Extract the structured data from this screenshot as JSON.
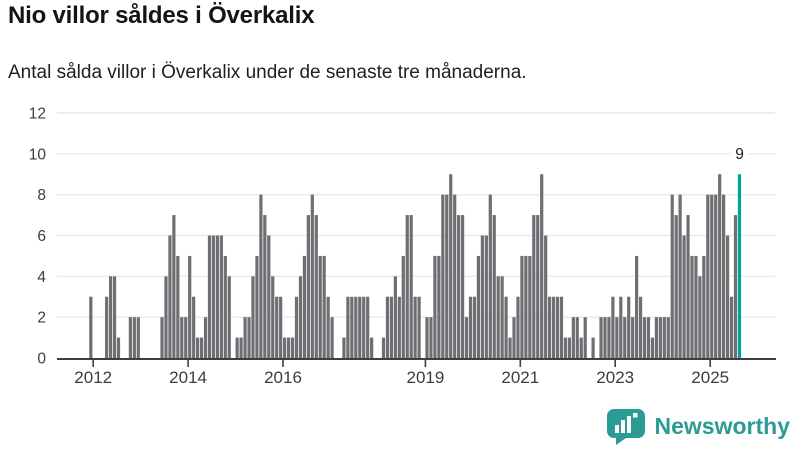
{
  "header": {
    "title": "Nio villor såldes i Överkalix",
    "subtitle": "Antal sålda villor i Överkalix under de senaste tre månaderna."
  },
  "chart_data": {
    "type": "bar",
    "title": "Nio villor såldes i Överkalix",
    "subtitle": "Antal sålda villor i Överkalix under de senaste tre månaderna.",
    "description": "Monthly bars (rolling 3-month count of sold houses), from mid-2011 to 2025. Last bar highlighted.",
    "ylim": [
      0,
      12
    ],
    "yticks": [
      0,
      2,
      4,
      6,
      8,
      10,
      12
    ],
    "grid": true,
    "legend": false,
    "x_axis": {
      "tick_years": [
        "2012",
        "2014",
        "2016",
        "2019",
        "2021",
        "2023",
        "2025"
      ],
      "tick_month_indices": [
        7,
        31,
        55,
        91,
        115,
        139,
        163
      ]
    },
    "values": [
      0,
      0,
      0,
      0,
      0,
      0,
      3,
      0,
      0,
      0,
      3,
      4,
      4,
      1,
      0,
      0,
      2,
      2,
      2,
      0,
      0,
      0,
      0,
      0,
      2,
      4,
      6,
      7,
      5,
      2,
      2,
      5,
      3,
      1,
      1,
      2,
      6,
      6,
      6,
      6,
      5,
      4,
      0,
      1,
      1,
      2,
      2,
      4,
      5,
      8,
      7,
      6,
      4,
      3,
      3,
      1,
      1,
      1,
      3,
      4,
      5,
      7,
      8,
      7,
      5,
      5,
      3,
      2,
      0,
      0,
      1,
      3,
      3,
      3,
      3,
      3,
      3,
      1,
      0,
      0,
      1,
      3,
      3,
      4,
      3,
      5,
      7,
      7,
      3,
      3,
      0,
      2,
      2,
      5,
      5,
      8,
      8,
      9,
      8,
      7,
      7,
      2,
      3,
      3,
      5,
      6,
      6,
      8,
      7,
      4,
      4,
      3,
      1,
      2,
      3,
      5,
      5,
      5,
      7,
      7,
      9,
      6,
      3,
      3,
      3,
      3,
      1,
      1,
      2,
      2,
      1,
      2,
      0,
      1,
      0,
      2,
      2,
      2,
      3,
      2,
      3,
      2,
      3,
      2,
      5,
      3,
      2,
      2,
      1,
      2,
      2,
      2,
      2,
      8,
      7,
      8,
      6,
      7,
      5,
      5,
      4,
      5,
      8,
      8,
      8,
      9,
      8,
      6,
      3,
      7,
      9
    ],
    "highlight_last": true,
    "last_value_label": "9",
    "colors": {
      "bar": "#6e6e73",
      "highlight": "#00a29d"
    }
  },
  "logo": {
    "text": "Newsworthy"
  }
}
